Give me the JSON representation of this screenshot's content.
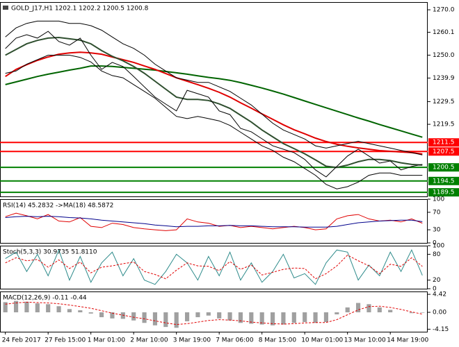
{
  "chart_data": [
    {
      "type": "line",
      "title": "GOLD_J17,H1  1202.1 1202.2 1200.5 1200.8",
      "categories": [
        "24 Feb 2017",
        null,
        null,
        null,
        "27 Feb 15:00",
        null,
        null,
        null,
        "1 Mar 01:00",
        null,
        null,
        null,
        "2 Mar 10:00",
        null,
        null,
        null,
        "3 Mar 19:00",
        null,
        null,
        null,
        "7 Mar 06:00",
        null,
        null,
        null,
        "8 Mar 15:00",
        null,
        null,
        null,
        "10 Mar 01:00",
        null,
        null,
        null,
        "13 Mar 10:00",
        null,
        null,
        null,
        "14 Mar 19:00",
        null,
        null,
        null
      ],
      "ylim": [
        1187.7,
        1273.4
      ],
      "yticks": [
        {
          "value": 1270,
          "label": "1270.0"
        },
        1260.1,
        {
          "value": 1250,
          "label": "1250.0"
        },
        1239.9,
        1229.5,
        1219.5
      ],
      "levels": [
        {
          "value": 1211.5,
          "color": "#ff0000"
        },
        {
          "value": 1207.5,
          "color": "#ff0000"
        },
        {
          "value": 1200.5,
          "color": "#008000"
        },
        {
          "value": 1194.5,
          "color": "#008000"
        },
        {
          "value": 1189.5,
          "color": "#008000"
        }
      ],
      "series": [
        {
          "color": "#006400",
          "width": 2,
          "values": [
            1237.0,
            1238.2,
            1239.4,
            1240.6,
            1241.6,
            1242.5,
            1243.4,
            1244.2,
            1245.2,
            1245.2,
            1245.0,
            1244.6,
            1244.2,
            1243.8,
            1243.4,
            1242.8,
            1242.2,
            1241.6,
            1240.9,
            1240.2,
            1239.6,
            1238.9,
            1237.9,
            1236.7,
            1235.5,
            1234.2,
            1232.8,
            1231.3,
            1229.8,
            1228.3,
            1226.8,
            1225.3,
            1223.8,
            1222.3,
            1220.9,
            1219.4,
            1218.0,
            1216.6,
            1215.2,
            1213.8
          ]
        },
        {
          "color": "#e00000",
          "width": 2,
          "values": [
            1240.6,
            1243.7,
            1245.8,
            1247.7,
            1249.2,
            1250.4,
            1251.0,
            1251.3,
            1251.0,
            1250.4,
            1249.2,
            1248.0,
            1246.8,
            1245.2,
            1243.7,
            1241.9,
            1240.0,
            1238.5,
            1237.0,
            1235.4,
            1233.6,
            1231.5,
            1229.0,
            1226.6,
            1224.1,
            1221.7,
            1219.3,
            1217.1,
            1215.3,
            1213.4,
            1211.9,
            1210.7,
            1209.8,
            1209.1,
            1208.5,
            1207.9,
            1207.6,
            1207.3,
            1207.0,
            1206.4
          ]
        },
        {
          "color": "#2f4f2f",
          "width": 2,
          "values": [
            1250.0,
            1252.5,
            1255.0,
            1256.5,
            1257.5,
            1257.8,
            1257.2,
            1256.6,
            1255.0,
            1252.0,
            1249.5,
            1247.5,
            1245.0,
            1242.0,
            1238.5,
            1235.0,
            1231.5,
            1230.5,
            1230.5,
            1230.0,
            1228.5,
            1226.5,
            1223.5,
            1220.5,
            1217.0,
            1214.0,
            1211.0,
            1208.8,
            1206.5,
            1203.8,
            1201.0,
            1200.5,
            1201.5,
            1203.0,
            1204.0,
            1204.0,
            1203.5,
            1202.5,
            1201.8,
            1201.5
          ]
        },
        {
          "color": "#000000",
          "width": 1,
          "values": [
            1258,
            1262,
            1264,
            1265,
            1265,
            1265,
            1264,
            1264,
            1263,
            1261,
            1258,
            1255,
            1253,
            1250,
            1246,
            1243,
            1240,
            1239,
            1238,
            1238,
            1236,
            1234,
            1231,
            1228,
            1224,
            1220,
            1217,
            1215,
            1213,
            1210,
            1209,
            1210,
            1211,
            1212,
            1211,
            1210,
            1209,
            1208,
            1207,
            1206
          ]
        },
        {
          "color": "#000000",
          "width": 1,
          "values": [
            1242,
            1243,
            1246,
            1248,
            1250,
            1250,
            1250,
            1249,
            1247,
            1243,
            1241,
            1240,
            1237,
            1234,
            1231,
            1227,
            1223,
            1222,
            1223,
            1222,
            1221,
            1219,
            1216,
            1213,
            1210,
            1208,
            1205,
            1203,
            1200,
            1197,
            1193,
            1191,
            1192,
            1194,
            1197,
            1198,
            1198,
            1197,
            1197,
            1197
          ]
        },
        {
          "color": "#000000",
          "width": 1,
          "values": [
            1252.9,
            1257.5,
            1259.0,
            1257.5,
            1260.5,
            1256.0,
            1254.4,
            1257.5,
            1250.0,
            1243.7,
            1246.8,
            1245.0,
            1240.6,
            1236.0,
            1231.5,
            1228.4,
            1225.4,
            1234.5,
            1233.0,
            1231.5,
            1225.4,
            1223.8,
            1217.7,
            1216.2,
            1213.1,
            1210.0,
            1208.5,
            1207.0,
            1204.0,
            1199.4,
            1196.3,
            1200.9,
            1205.5,
            1208.5,
            1205.5,
            1202.4,
            1203.3,
            1199.4,
            1200.9,
            1201.8
          ]
        }
      ]
    },
    {
      "type": "line",
      "title": "RSI(14) 45.2832  ->MA(18) 48.5872",
      "ylim": [
        0,
        100
      ],
      "yticks": [
        100,
        70,
        30,
        0
      ],
      "series": [
        {
          "color": "#e00000",
          "width": 1,
          "values": [
            60,
            68,
            62,
            55,
            65,
            50,
            48,
            58,
            38,
            35,
            45,
            42,
            35,
            32,
            30,
            28,
            30,
            55,
            48,
            45,
            38,
            40,
            35,
            38,
            35,
            32,
            35,
            38,
            35,
            30,
            32,
            55,
            62,
            65,
            55,
            50,
            52,
            48,
            55,
            45
          ]
        },
        {
          "color": "#00008b",
          "width": 1,
          "values": [
            58,
            60,
            61,
            60,
            61,
            60,
            58,
            57,
            55,
            52,
            50,
            48,
            46,
            44,
            41,
            39,
            37,
            38,
            38,
            39,
            39,
            40,
            39,
            39,
            38,
            37,
            37,
            37,
            36,
            36,
            36,
            38,
            42,
            46,
            48,
            50,
            51,
            52,
            52,
            48.6
          ]
        }
      ]
    },
    {
      "type": "line",
      "title": "Stoch(5,3,3) 30.9735 51.8110",
      "ylim": [
        0,
        100
      ],
      "yticks": [
        100,
        80,
        20,
        0
      ],
      "series": [
        {
          "color": "#2e8b8b",
          "width": 1,
          "values": [
            70,
            85,
            40,
            80,
            30,
            90,
            20,
            75,
            15,
            60,
            85,
            30,
            70,
            20,
            10,
            40,
            80,
            60,
            20,
            75,
            30,
            85,
            20,
            60,
            15,
            40,
            80,
            25,
            35,
            10,
            60,
            90,
            85,
            20,
            55,
            30,
            85,
            40,
            90,
            31
          ]
        },
        {
          "color": "#e00000",
          "width": 1,
          "dash": true,
          "values": [
            60,
            72,
            65,
            68,
            50,
            67,
            47,
            62,
            37,
            50,
            53,
            58,
            62,
            40,
            33,
            23,
            43,
            60,
            53,
            52,
            42,
            63,
            45,
            55,
            32,
            38,
            45,
            48,
            47,
            23,
            35,
            53,
            78,
            65,
            53,
            35,
            57,
            52,
            72,
            52
          ]
        }
      ]
    },
    {
      "type": "bar",
      "title": "MACD(12,26,9) -0.11 -0.44",
      "ylim": [
        -4.77,
        5.12
      ],
      "yticks": [
        4.42,
        {
          "value": 0,
          "label": "0.00"
        },
        -4.15
      ],
      "series": [
        {
          "color": "#a0a0a0",
          "values": [
            2.5,
            2.8,
            2.6,
            2.2,
            2.0,
            1.5,
            0.8,
            0.5,
            -0.3,
            -1.2,
            -1.5,
            -1.6,
            -2.0,
            -2.6,
            -3.2,
            -3.6,
            -3.8,
            -2.2,
            -1.2,
            -0.8,
            -1.5,
            -2.0,
            -2.6,
            -2.8,
            -3.0,
            -3.2,
            -3.0,
            -2.6,
            -2.4,
            -2.6,
            -2.4,
            -0.5,
            1.2,
            2.3,
            2.0,
            1.2,
            0.6,
            0.0,
            -0.2,
            -0.11
          ]
        },
        {
          "type": "line",
          "color": "#e00000",
          "width": 1,
          "dash": true,
          "values": [
            2.0,
            2.3,
            2.5,
            2.4,
            2.3,
            2.1,
            1.8,
            1.4,
            1.0,
            0.4,
            -0.2,
            -0.7,
            -1.2,
            -1.6,
            -2.1,
            -2.6,
            -3.0,
            -2.8,
            -2.4,
            -2.0,
            -1.8,
            -1.9,
            -2.1,
            -2.4,
            -2.6,
            -2.8,
            -2.9,
            -2.8,
            -2.6,
            -2.5,
            -2.5,
            -1.8,
            -0.6,
            0.6,
            1.4,
            1.5,
            1.2,
            0.7,
            0.1,
            -0.44
          ]
        }
      ]
    }
  ]
}
